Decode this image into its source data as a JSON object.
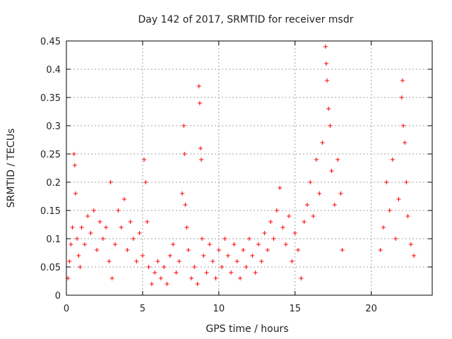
{
  "chart_data": {
    "type": "scatter",
    "title": "Day 142 of 2017, SRMTID for receiver msdr",
    "xlabel": "GPS time / hours",
    "ylabel": "SRMTID / TECUs",
    "xlim": [
      0,
      24
    ],
    "ylim": [
      0,
      0.45
    ],
    "xticks": [
      0,
      5,
      10,
      15,
      20
    ],
    "yticks": [
      0,
      0.05,
      0.1,
      0.15,
      0.2,
      0.25,
      0.3,
      0.35,
      0.4,
      0.45
    ],
    "xtick_labels": [
      "0",
      "5",
      "10",
      "15",
      "20"
    ],
    "ytick_labels": [
      "0",
      "0.05",
      "0.1",
      "0.15",
      "0.2",
      "0.25",
      "0.3",
      "0.35",
      "0.4",
      "0.45"
    ],
    "grid": true,
    "marker": "+",
    "color": "#ff0000",
    "series": [
      {
        "name": "SRMTID",
        "points": [
          [
            0.1,
            0.03
          ],
          [
            0.2,
            0.06
          ],
          [
            0.3,
            0.09
          ],
          [
            0.4,
            0.12
          ],
          [
            0.5,
            0.25
          ],
          [
            0.55,
            0.23
          ],
          [
            0.6,
            0.18
          ],
          [
            0.7,
            0.1
          ],
          [
            0.8,
            0.07
          ],
          [
            0.9,
            0.05
          ],
          [
            1.0,
            0.12
          ],
          [
            1.2,
            0.09
          ],
          [
            1.4,
            0.14
          ],
          [
            1.6,
            0.11
          ],
          [
            1.8,
            0.15
          ],
          [
            2.0,
            0.08
          ],
          [
            2.2,
            0.13
          ],
          [
            2.4,
            0.1
          ],
          [
            2.6,
            0.12
          ],
          [
            2.8,
            0.06
          ],
          [
            2.9,
            0.2
          ],
          [
            3.0,
            0.03
          ],
          [
            3.2,
            0.09
          ],
          [
            3.4,
            0.15
          ],
          [
            3.6,
            0.12
          ],
          [
            3.8,
            0.17
          ],
          [
            4.0,
            0.08
          ],
          [
            4.2,
            0.13
          ],
          [
            4.4,
            0.1
          ],
          [
            4.6,
            0.06
          ],
          [
            4.8,
            0.11
          ],
          [
            5.0,
            0.07
          ],
          [
            5.1,
            0.24
          ],
          [
            5.2,
            0.2
          ],
          [
            5.3,
            0.13
          ],
          [
            5.4,
            0.05
          ],
          [
            5.6,
            0.02
          ],
          [
            5.8,
            0.04
          ],
          [
            6.0,
            0.06
          ],
          [
            6.2,
            0.03
          ],
          [
            6.4,
            0.05
          ],
          [
            6.6,
            0.02
          ],
          [
            6.8,
            0.07
          ],
          [
            7.0,
            0.09
          ],
          [
            7.2,
            0.04
          ],
          [
            7.4,
            0.06
          ],
          [
            7.6,
            0.18
          ],
          [
            7.7,
            0.3
          ],
          [
            7.75,
            0.25
          ],
          [
            7.8,
            0.16
          ],
          [
            7.9,
            0.12
          ],
          [
            8.0,
            0.08
          ],
          [
            8.2,
            0.03
          ],
          [
            8.4,
            0.05
          ],
          [
            8.6,
            0.02
          ],
          [
            8.7,
            0.37
          ],
          [
            8.75,
            0.34
          ],
          [
            8.8,
            0.26
          ],
          [
            8.85,
            0.24
          ],
          [
            8.9,
            0.1
          ],
          [
            9.0,
            0.07
          ],
          [
            9.2,
            0.04
          ],
          [
            9.4,
            0.09
          ],
          [
            9.6,
            0.06
          ],
          [
            9.8,
            0.03
          ],
          [
            10.0,
            0.08
          ],
          [
            10.2,
            0.05
          ],
          [
            10.4,
            0.1
          ],
          [
            10.6,
            0.07
          ],
          [
            10.8,
            0.04
          ],
          [
            11.0,
            0.09
          ],
          [
            11.2,
            0.06
          ],
          [
            11.4,
            0.03
          ],
          [
            11.6,
            0.08
          ],
          [
            11.8,
            0.05
          ],
          [
            12.0,
            0.1
          ],
          [
            12.2,
            0.07
          ],
          [
            12.4,
            0.04
          ],
          [
            12.6,
            0.09
          ],
          [
            12.8,
            0.06
          ],
          [
            13.0,
            0.11
          ],
          [
            13.2,
            0.08
          ],
          [
            13.4,
            0.13
          ],
          [
            13.6,
            0.1
          ],
          [
            13.8,
            0.15
          ],
          [
            14.0,
            0.19
          ],
          [
            14.2,
            0.12
          ],
          [
            14.4,
            0.09
          ],
          [
            14.6,
            0.14
          ],
          [
            14.8,
            0.06
          ],
          [
            15.0,
            0.11
          ],
          [
            15.2,
            0.08
          ],
          [
            15.4,
            0.03
          ],
          [
            15.6,
            0.13
          ],
          [
            15.8,
            0.16
          ],
          [
            16.0,
            0.2
          ],
          [
            16.2,
            0.14
          ],
          [
            16.4,
            0.24
          ],
          [
            16.6,
            0.18
          ],
          [
            16.8,
            0.27
          ],
          [
            17.0,
            0.44
          ],
          [
            17.05,
            0.41
          ],
          [
            17.1,
            0.38
          ],
          [
            17.2,
            0.33
          ],
          [
            17.3,
            0.3
          ],
          [
            17.4,
            0.22
          ],
          [
            17.6,
            0.16
          ],
          [
            17.8,
            0.24
          ],
          [
            18.0,
            0.18
          ],
          [
            18.1,
            0.08
          ],
          [
            20.6,
            0.08
          ],
          [
            20.8,
            0.12
          ],
          [
            21.0,
            0.2
          ],
          [
            21.2,
            0.15
          ],
          [
            21.4,
            0.24
          ],
          [
            21.6,
            0.1
          ],
          [
            21.8,
            0.17
          ],
          [
            22.0,
            0.35
          ],
          [
            22.05,
            0.38
          ],
          [
            22.1,
            0.3
          ],
          [
            22.2,
            0.27
          ],
          [
            22.3,
            0.2
          ],
          [
            22.4,
            0.14
          ],
          [
            22.6,
            0.09
          ],
          [
            22.8,
            0.07
          ]
        ]
      }
    ]
  }
}
